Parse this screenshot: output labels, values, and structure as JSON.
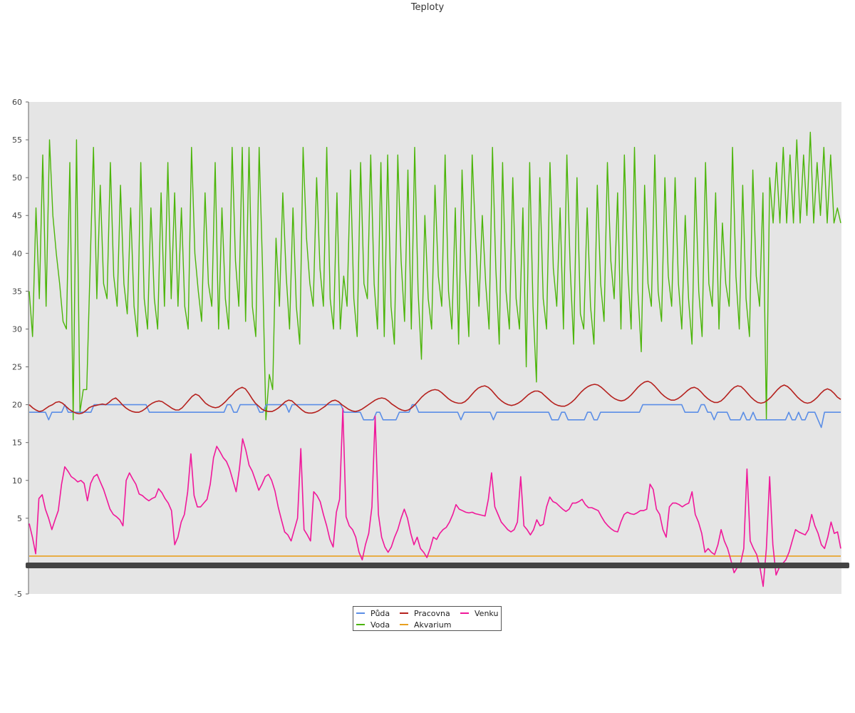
{
  "chart_data": {
    "type": "line",
    "title": "Teploty",
    "xlabel": "",
    "ylabel": "",
    "ylim": [
      -5,
      60
    ],
    "yticks": [
      -5,
      5,
      10,
      15,
      20,
      25,
      30,
      35,
      40,
      45,
      50,
      55,
      60
    ],
    "grid": false,
    "legend_position": "bottom-center",
    "series": [
      {
        "name": "Půda",
        "color": "#5b8ee6",
        "values": [
          19,
          19,
          19,
          19,
          19,
          19,
          18,
          19,
          19,
          19,
          19,
          20,
          19,
          19,
          19,
          19,
          19,
          19,
          19,
          19,
          20,
          20,
          20,
          20,
          20,
          20,
          20,
          20,
          20,
          20,
          20,
          20,
          20,
          20,
          20,
          20,
          20,
          19,
          19,
          19,
          19,
          19,
          19,
          19,
          19,
          19,
          19,
          19,
          19,
          19,
          19,
          19,
          19,
          19,
          19,
          19,
          19,
          19,
          19,
          19,
          19,
          20,
          20,
          19,
          19,
          20,
          20,
          20,
          20,
          20,
          20,
          19,
          19,
          20,
          20,
          20,
          20,
          20,
          20,
          20,
          19,
          20,
          20,
          20,
          20,
          20,
          20,
          20,
          20,
          20,
          20,
          20,
          20,
          20,
          20,
          20,
          20,
          19,
          19,
          19,
          19,
          19,
          19,
          18,
          18,
          18,
          18,
          19,
          19,
          18,
          18,
          18,
          18,
          18,
          19,
          19,
          19,
          19,
          20,
          20,
          19,
          19,
          19,
          19,
          19,
          19,
          19,
          19,
          19,
          19,
          19,
          19,
          19,
          18,
          19,
          19,
          19,
          19,
          19,
          19,
          19,
          19,
          19,
          18,
          19,
          19,
          19,
          19,
          19,
          19,
          19,
          19,
          19,
          19,
          19,
          19,
          19,
          19,
          19,
          19,
          19,
          18,
          18,
          18,
          19,
          19,
          18,
          18,
          18,
          18,
          18,
          18,
          19,
          19,
          18,
          18,
          19,
          19,
          19,
          19,
          19,
          19,
          19,
          19,
          19,
          19,
          19,
          19,
          19,
          20,
          20,
          20,
          20,
          20,
          20,
          20,
          20,
          20,
          20,
          20,
          20,
          20,
          19,
          19,
          19,
          19,
          19,
          20,
          20,
          19,
          19,
          18,
          19,
          19,
          19,
          19,
          18,
          18,
          18,
          18,
          19,
          18,
          18,
          19,
          18,
          18,
          18,
          18,
          18,
          18,
          18,
          18,
          18,
          18,
          19,
          18,
          18,
          19,
          18,
          18,
          19,
          19,
          19,
          18,
          17,
          19,
          19,
          19,
          19,
          19,
          19
        ]
      },
      {
        "name": "Voda",
        "color": "#4cb50a",
        "values": [
          35,
          29,
          46,
          34,
          53,
          33,
          55,
          45,
          40,
          36,
          31,
          30,
          52,
          18,
          55,
          19,
          22,
          22,
          38,
          54,
          34,
          49,
          36,
          34,
          52,
          37,
          33,
          49,
          36,
          32,
          46,
          33,
          29,
          52,
          34,
          30,
          46,
          34,
          30,
          48,
          33,
          52,
          34,
          48,
          33,
          46,
          33,
          30,
          54,
          40,
          35,
          31,
          48,
          36,
          33,
          52,
          30,
          46,
          34,
          30,
          54,
          39,
          33,
          54,
          31,
          54,
          33,
          29,
          54,
          38,
          18,
          24,
          22,
          42,
          33,
          48,
          37,
          30,
          46,
          33,
          28,
          54,
          42,
          36,
          33,
          50,
          38,
          33,
          54,
          34,
          30,
          48,
          30,
          37,
          33,
          51,
          34,
          29,
          52,
          36,
          34,
          53,
          36,
          30,
          52,
          29,
          53,
          33,
          28,
          53,
          39,
          31,
          51,
          30,
          54,
          35,
          26,
          45,
          34,
          30,
          49,
          37,
          33,
          53,
          35,
          30,
          46,
          28,
          51,
          38,
          29,
          53,
          42,
          33,
          45,
          36,
          30,
          54,
          38,
          28,
          52,
          35,
          30,
          50,
          34,
          30,
          46,
          25,
          52,
          33,
          23,
          50,
          34,
          30,
          52,
          38,
          33,
          46,
          30,
          53,
          38,
          28,
          50,
          32,
          30,
          46,
          33,
          28,
          49,
          36,
          31,
          52,
          39,
          34,
          48,
          30,
          53,
          38,
          30,
          54,
          35,
          27,
          49,
          36,
          33,
          53,
          35,
          31,
          50,
          37,
          33,
          50,
          36,
          30,
          45,
          34,
          28,
          50,
          35,
          29,
          52,
          36,
          33,
          48,
          30,
          44,
          36,
          33,
          54,
          37,
          30,
          49,
          34,
          29,
          51,
          37,
          33,
          48,
          18,
          50,
          44,
          52,
          44,
          54,
          44,
          53,
          44,
          55,
          44,
          53,
          45,
          56,
          44,
          52,
          45,
          54,
          44,
          53,
          44,
          46,
          44
        ]
      },
      {
        "name": "Pracovna",
        "color": "#b5211e",
        "values": [
          20.0,
          19.6,
          19.3,
          19.1,
          19.2,
          19.5,
          19.8,
          20.0,
          20.3,
          20.4,
          20.2,
          19.8,
          19.4,
          19.1,
          18.9,
          18.8,
          18.9,
          19.2,
          19.6,
          19.8,
          19.9,
          20.0,
          20.1,
          20.0,
          20.3,
          20.7,
          20.9,
          20.5,
          20.0,
          19.6,
          19.3,
          19.1,
          19.0,
          19.0,
          19.2,
          19.5,
          19.9,
          20.2,
          20.4,
          20.5,
          20.4,
          20.1,
          19.8,
          19.5,
          19.3,
          19.3,
          19.6,
          20.1,
          20.6,
          21.1,
          21.4,
          21.2,
          20.7,
          20.2,
          19.9,
          19.7,
          19.6,
          19.7,
          20.0,
          20.4,
          20.9,
          21.3,
          21.8,
          22.1,
          22.3,
          22.1,
          21.5,
          20.8,
          20.2,
          19.8,
          19.4,
          19.2,
          19.1,
          19.1,
          19.3,
          19.6,
          20.0,
          20.4,
          20.6,
          20.5,
          20.1,
          19.7,
          19.3,
          19.0,
          18.9,
          18.9,
          19.0,
          19.2,
          19.5,
          19.8,
          20.2,
          20.5,
          20.6,
          20.4,
          20.0,
          19.7,
          19.4,
          19.2,
          19.1,
          19.2,
          19.4,
          19.7,
          20.0,
          20.3,
          20.6,
          20.8,
          20.9,
          20.8,
          20.5,
          20.1,
          19.8,
          19.5,
          19.3,
          19.2,
          19.3,
          19.6,
          20.0,
          20.5,
          21.0,
          21.4,
          21.7,
          21.9,
          22.0,
          21.9,
          21.6,
          21.2,
          20.8,
          20.5,
          20.3,
          20.2,
          20.2,
          20.4,
          20.8,
          21.3,
          21.8,
          22.2,
          22.4,
          22.5,
          22.3,
          21.9,
          21.4,
          20.9,
          20.5,
          20.2,
          20.0,
          19.9,
          20.0,
          20.2,
          20.5,
          20.9,
          21.3,
          21.6,
          21.8,
          21.8,
          21.6,
          21.2,
          20.8,
          20.4,
          20.1,
          19.9,
          19.8,
          19.8,
          20.0,
          20.3,
          20.7,
          21.2,
          21.7,
          22.1,
          22.4,
          22.6,
          22.7,
          22.6,
          22.3,
          21.9,
          21.5,
          21.1,
          20.8,
          20.6,
          20.5,
          20.6,
          20.9,
          21.3,
          21.8,
          22.3,
          22.7,
          23.0,
          23.1,
          22.9,
          22.5,
          22.0,
          21.5,
          21.1,
          20.8,
          20.6,
          20.6,
          20.8,
          21.1,
          21.5,
          21.9,
          22.2,
          22.3,
          22.1,
          21.7,
          21.2,
          20.8,
          20.5,
          20.3,
          20.3,
          20.5,
          20.9,
          21.4,
          21.9,
          22.3,
          22.5,
          22.4,
          22.0,
          21.5,
          21.0,
          20.6,
          20.3,
          20.2,
          20.3,
          20.6,
          21.0,
          21.5,
          22.0,
          22.4,
          22.6,
          22.4,
          22.0,
          21.5,
          21.0,
          20.6,
          20.3,
          20.2,
          20.3,
          20.6,
          21.0,
          21.5,
          21.9,
          22.1,
          21.9,
          21.5,
          21.0,
          20.7
        ]
      },
      {
        "name": "Akvarium",
        "color": "#e8a020",
        "values": [
          0,
          0
        ]
      },
      {
        "name": "Venku",
        "color": "#f0189a",
        "values": [
          4.3,
          2.5,
          0.3,
          7.6,
          8.1,
          6.2,
          5.0,
          3.5,
          4.8,
          6.0,
          9.5,
          11.8,
          11.2,
          10.5,
          10.2,
          9.8,
          10.0,
          9.6,
          7.3,
          9.6,
          10.5,
          10.8,
          9.8,
          8.8,
          7.5,
          6.2,
          5.5,
          5.2,
          4.8,
          4.0,
          10.0,
          11.0,
          10.2,
          9.5,
          8.2,
          8.0,
          7.6,
          7.3,
          7.6,
          7.8,
          8.9,
          8.4,
          7.6,
          7.0,
          6.0,
          1.5,
          2.5,
          4.5,
          5.5,
          8.5,
          13.5,
          8.0,
          6.5,
          6.5,
          7.0,
          7.5,
          9.5,
          13.0,
          14.5,
          13.8,
          13.0,
          12.5,
          11.5,
          10.0,
          8.5,
          11.5,
          15.5,
          14.0,
          12.0,
          11.2,
          10.0,
          8.7,
          9.5,
          10.5,
          10.8,
          10.0,
          8.6,
          6.5,
          4.8,
          3.2,
          2.8,
          2.0,
          3.5,
          5.0,
          14.2,
          3.5,
          2.8,
          2.0,
          8.5,
          8.0,
          7.2,
          5.5,
          4.0,
          2.2,
          1.2,
          5.8,
          7.5,
          19.5,
          5.2,
          4.0,
          3.5,
          2.5,
          0.5,
          -0.5,
          1.5,
          3.0,
          6.5,
          18.5,
          5.5,
          2.5,
          1.2,
          0.5,
          1.2,
          2.5,
          3.5,
          5.0,
          6.2,
          5.0,
          3.0,
          1.5,
          2.5,
          1.0,
          0.5,
          -0.2,
          1.0,
          2.5,
          2.2,
          3.0,
          3.5,
          3.8,
          4.5,
          5.5,
          6.8,
          6.2,
          6.0,
          5.8,
          5.7,
          5.8,
          5.6,
          5.5,
          5.4,
          5.3,
          7.5,
          11.0,
          6.5,
          5.5,
          4.5,
          4.0,
          3.5,
          3.2,
          3.5,
          4.5,
          10.5,
          4.0,
          3.5,
          2.8,
          3.5,
          4.8,
          4.0,
          4.2,
          6.5,
          7.8,
          7.2,
          7.0,
          6.6,
          6.2,
          5.9,
          6.2,
          7.0,
          7.0,
          7.2,
          7.5,
          6.8,
          6.4,
          6.4,
          6.2,
          6.0,
          5.2,
          4.5,
          4.0,
          3.6,
          3.3,
          3.2,
          4.5,
          5.5,
          5.8,
          5.6,
          5.5,
          5.7,
          6.0,
          6.0,
          6.2,
          9.5,
          8.8,
          6.2,
          5.5,
          3.5,
          2.5,
          6.5,
          7.0,
          7.0,
          6.8,
          6.5,
          6.8,
          7.0,
          8.5,
          5.5,
          4.5,
          3.0,
          0.5,
          1.0,
          0.5,
          0.2,
          1.5,
          3.5,
          2.0,
          1.0,
          -0.5,
          -2.2,
          -1.5,
          -1.0,
          1.0,
          11.5,
          2.0,
          1.0,
          0.2,
          -1.5,
          -4.0,
          1.0,
          10.5,
          1.5,
          -2.5,
          -1.5,
          -1.0,
          -0.5,
          0.5,
          2.0,
          3.5,
          3.2,
          3.0,
          2.8,
          3.5,
          5.5,
          4.0,
          3.0,
          1.5,
          1.0,
          2.5,
          4.5,
          3.0,
          3.2,
          1.0
        ]
      }
    ]
  }
}
